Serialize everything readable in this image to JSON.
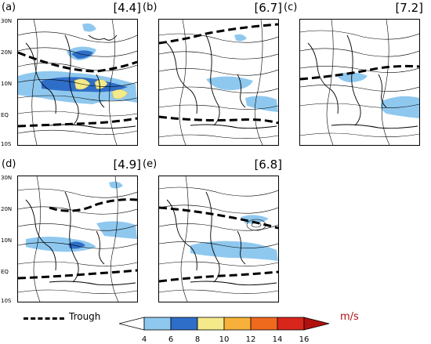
{
  "panels": [
    {
      "id": "a",
      "label": "(a)",
      "value": "[4.4]"
    },
    {
      "id": "b",
      "label": "(b)",
      "value": "[6.7]"
    },
    {
      "id": "c",
      "label": "(c)",
      "value": "[7.2]"
    },
    {
      "id": "d",
      "label": "(d)",
      "value": "[4.9]"
    },
    {
      "id": "e",
      "label": "(e)",
      "value": "[6.8]"
    }
  ],
  "lat_labels": [
    "30N",
    "20N",
    "10N",
    "EQ",
    "10S"
  ],
  "legend": {
    "trough_label": "Trough",
    "units": "m/s",
    "colorbar_ticks": [
      "4",
      "6",
      "8",
      "10",
      "12",
      "14",
      "16"
    ],
    "colors": [
      "#8fc8ef",
      "#2f6ec8",
      "#f4ea8a",
      "#f7b13a",
      "#f06a1e",
      "#d8261c"
    ]
  }
}
